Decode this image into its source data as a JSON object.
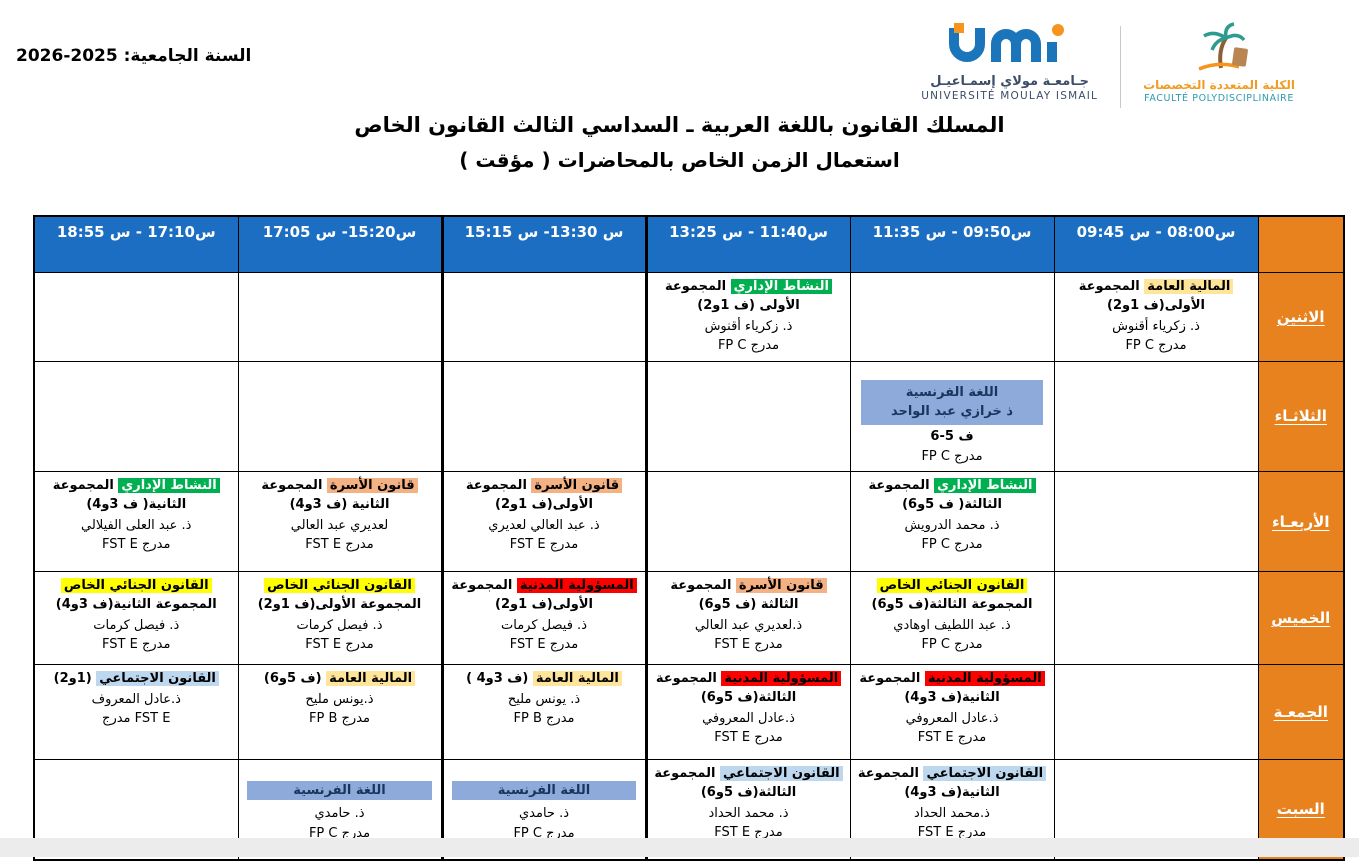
{
  "meta": {
    "academic_year_label": "السنة الجامعية: 2025-2026"
  },
  "logos": {
    "umi_arabic": "جـامعـة مولاي إسمـاعيـل",
    "umi_latin": "UNIVERSITÉ MOULAY ISMAIL",
    "faculty_arabic": "الكلية المتعددة التخصصات",
    "faculty_latin": "FACULTÉ POLYDISCIPLINAIRE"
  },
  "title": {
    "line1": "المسلك القانون باللغة العربية ـ  السداسي الثالث القانون الخاص",
    "line2": "استعمال الزمن الخاص بالمحاضرات ( مؤقت )"
  },
  "colors": {
    "header_blue": "#1b6ec2",
    "day_orange": "#e8821e",
    "french_blue": "#8eaadb",
    "french_text": "#17365d",
    "highlights": {
      "tan": {
        "bg": "#ffe599",
        "fg": "#000000"
      },
      "green": {
        "bg": "#00b050",
        "fg": "#ffffff"
      },
      "salmon": {
        "bg": "#f4b183",
        "fg": "#000000"
      },
      "yellow": {
        "bg": "#ffff00",
        "fg": "#000000"
      },
      "red": {
        "bg": "#ff0000",
        "fg": "#000000"
      },
      "lightblue": {
        "bg": "#bdd7ee",
        "fg": "#000000"
      }
    }
  },
  "timetable": {
    "time_slots": [
      "س08:00 - س 09:45",
      "س09:50 - س 11:35",
      "س11:40 - س 13:25",
      "س 13:30- س 15:15",
      "س15:20- س 17:05",
      "س17:10 - س 18:55"
    ],
    "days": [
      {
        "name": "الاثنين",
        "slots": [
          {
            "course": "المالية العامة",
            "hl": "tan",
            "rest": "المجموعة  الأولى(ف 1و2)",
            "teacher": "ذ. زكرياء أقنوش",
            "room": "مدرج FP C"
          },
          null,
          {
            "course": "النشاط الإداري",
            "hl": "green",
            "rest": "المجموعة الأولى (ف 1و2)",
            "teacher": "ذ. زكرياء أقنوش",
            "room": "مدرج FP C"
          },
          null,
          null,
          null
        ]
      },
      {
        "name": "الثلاثـاء",
        "slots": [
          null,
          {
            "type": "block",
            "lines": [
              "اللغة الفرنسية",
              "ذ خرازي عبد الواحد"
            ],
            "below": [
              "ف 5-6",
              "مدرج FP C"
            ]
          },
          null,
          null,
          null,
          null
        ]
      },
      {
        "name": "الأربعـاء",
        "slots": [
          null,
          {
            "course": "النشاط الإداري",
            "hl": "green",
            "rest": "المجموعة الثالثة( ف 5و6)",
            "teacher": "ذ. محمد الدرويش",
            "room": "مدرج FP C"
          },
          null,
          {
            "course": "قانون الأسرة",
            "hl": "salmon",
            "rest": "المجموعة الأولى(ف 1و2)",
            "teacher": "ذ. عبد العالي لعديري",
            "room": "مدرج FST E"
          },
          {
            "course": "قانون الأسرة",
            "hl": "salmon",
            "rest": "المجموعة الثانية (ف 3و4)",
            "teacher": "لعديري عبد العالي",
            "room": "مدرج FST E"
          },
          {
            "course": "النشاط الإداري",
            "hl": "green",
            "rest": "المجموعة الثانية( ف 3و4)",
            "teacher": "ذ. عبد العلى الفيلالي",
            "room": "مدرج FST E"
          }
        ]
      },
      {
        "name": "الخميس",
        "slots": [
          null,
          {
            "course": "القانون الجنائي الخاص",
            "hl": "yellow",
            "rest": "المجموعة الثالثة(ف 5و6)",
            "teacher": "ذ. عبد اللطيف اوهادي",
            "room": "مدرج FP C"
          },
          {
            "course": "قانون الأسرة",
            "hl": "salmon",
            "rest": "المجموعة الثالثة (ف 5و6)",
            "teacher": "ذ.لعديري عبد العالي",
            "room": "مدرج FST E"
          },
          {
            "course": "المسؤولية المدنية",
            "hl": "red",
            "rest": "المجموعة الأولى(ف 1و2)",
            "teacher": "ذ. فيصل كرمات",
            "room": "مدرج FST E"
          },
          {
            "course": "القانون الجنائي الخاص",
            "hl": "yellow",
            "rest": "المجموعة الأولى(ف 1و2)",
            "teacher": "ذ. فيصل كرمات",
            "room": "مدرج FST E"
          },
          {
            "course": "القانون الجنائي الخاص",
            "hl": "yellow",
            "rest": "المجموعة الثانية(ف 3و4)",
            "teacher": "ذ. فيصل كرمات",
            "room": "مدرج FST E"
          }
        ]
      },
      {
        "name": "الجمعـة",
        "slots": [
          null,
          {
            "course": "المسؤولية المدنية",
            "hl": "red",
            "rest": "المجموعة الثانية(ف 3و4)",
            "teacher": "ذ.عادل المعروفي",
            "room": "مدرج FST E"
          },
          {
            "course": "المسؤولية المدنية",
            "hl": "red",
            "rest": "المجموعة الثالثة(ف 5و6)",
            "teacher": "ذ.عادل المعروفي",
            "room": "مدرج FST E"
          },
          {
            "course": "المالية العامة",
            "hl": "tan",
            "rest": "(ف 3و4 )",
            "teacher": "ذ. يونس مليح",
            "room": "مدرج FP B"
          },
          {
            "course": "المالية العامة",
            "hl": "tan",
            "rest": "(ف 5و6)",
            "teacher": "ذ.يونس مليح",
            "room": "مدرج FP B"
          },
          {
            "course": "القانون الاجتماعي",
            "hl": "lightblue",
            "rest": "(1و2)",
            "teacher": "ذ.عادل المعروف",
            "room": "FST E مدرج"
          }
        ]
      },
      {
        "name": "السبت",
        "slots": [
          null,
          {
            "course": "القانون الاجتماعي",
            "hl": "lightblue",
            "rest": "المجموعة الثانية(ف 3و4)",
            "teacher": "ذ.محمد الحداد",
            "room": "مدرج FST E"
          },
          {
            "course": "القانون الاجتماعي",
            "hl": "lightblue",
            "rest": "المجموعة الثالثة(ف 5و6)",
            "teacher": "ذ. محمد الحداد",
            "room": "مدرج FST E"
          },
          {
            "type": "bar",
            "course": "اللغة الفرنسية",
            "teacher": "ذ. حامدي",
            "room": "مدرج FP C"
          },
          {
            "type": "bar",
            "course": "اللغة الفرنسية",
            "teacher": "ذ. حامدي",
            "room": "مدرج FP C"
          },
          null
        ]
      }
    ]
  }
}
